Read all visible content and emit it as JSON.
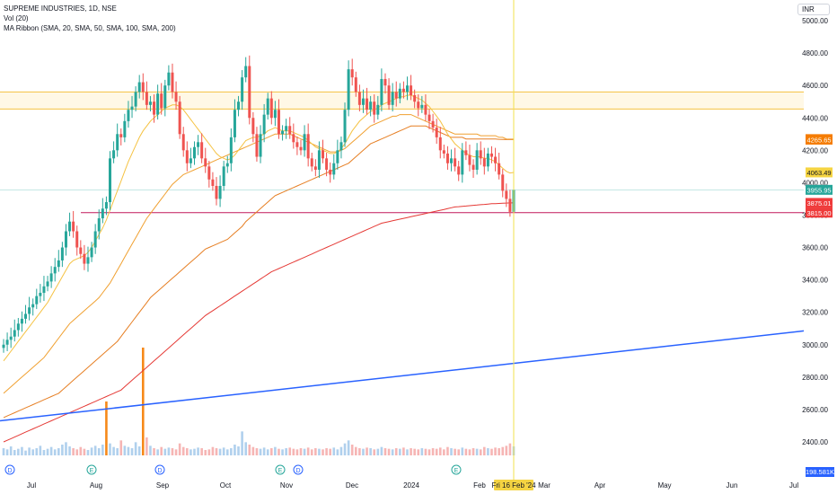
{
  "legend": {
    "symbol_line": "SUPREME INDUSTRIES, 1D, NSE",
    "volume_line": "Vol (20)",
    "ma_line": "MA Ribbon (SMA, 20, SMA, 50, SMA, 100, SMA, 200)"
  },
  "currency_badge": "INR",
  "crosshair_date_label": "Fri 16 Feb '24",
  "volume_tag": "198.581K",
  "colors": {
    "up": "#26a69a",
    "down": "#ef5350",
    "sma20": "#f5c242",
    "sma50": "#f0a030",
    "sma100": "#e67e22",
    "sma200": "#e53935",
    "trend": "#2962ff",
    "hline_red": "#c2185b",
    "hline_orange": "#f5c242",
    "crosshair": "#f2e14c",
    "tag_green": "#26a69a",
    "tag_red": "#ef3b3b",
    "tag_orange": "#f57c00",
    "tag_yellow": "#f5d442"
  },
  "chart_data": {
    "type": "candlestick",
    "title": "SUPREME INDUSTRIES, 1D, NSE",
    "ylim": [
      2300,
      5100
    ],
    "y_ticks": [
      2400,
      2600,
      2800,
      3000,
      3200,
      3400,
      3600,
      3800,
      4000,
      4200,
      4400,
      4600,
      4800,
      5000
    ],
    "x_ticks": [
      "Jul",
      "Aug",
      "Sep",
      "Oct",
      "Nov",
      "Dec",
      "2024",
      "Feb",
      "Mar",
      "Apr",
      "May",
      "Jun",
      "Jul"
    ],
    "price_tags": [
      {
        "value": 4268.93,
        "label": "4268.93",
        "color": "#f57c00"
      },
      {
        "value": 4265.65,
        "label": "4265.65",
        "color": "#f57c00"
      },
      {
        "value": 4063.49,
        "label": "4063.49",
        "color": "#f5d442"
      },
      {
        "value": 3955.95,
        "label": "3955.95",
        "color": "#26a69a"
      },
      {
        "value": 3875.01,
        "label": "3875.01",
        "color": "#ef3b3b"
      },
      {
        "value": 3815.0,
        "label": "3815.00",
        "color": "#ef3b3b"
      }
    ],
    "horizontal_lines": [
      {
        "value": 4560,
        "color": "#f5c242"
      },
      {
        "value": 4455,
        "color": "#f5c242"
      },
      {
        "value": 3815,
        "color": "#c2185b"
      }
    ],
    "trendline": {
      "from": [
        "Jun 14 2023",
        2530
      ],
      "to": [
        "Jul 1 2024",
        3085
      ]
    },
    "crosshair_date": "Fri 16 Feb '24",
    "close_series": [
      3000,
      3030,
      3050,
      3090,
      3130,
      3160,
      3190,
      3230,
      3250,
      3300,
      3320,
      3360,
      3390,
      3440,
      3480,
      3520,
      3600,
      3700,
      3760,
      3700,
      3600,
      3560,
      3500,
      3540,
      3600,
      3700,
      3780,
      3840,
      3880,
      4150,
      4200,
      4300,
      4280,
      4380,
      4450,
      4470,
      4560,
      4620,
      4560,
      4480,
      4500,
      4420,
      4550,
      4460,
      4600,
      4680,
      4560,
      4500,
      4300,
      4200,
      4120,
      4150,
      4220,
      4250,
      4150,
      4100,
      4020,
      3980,
      3900,
      3980,
      4100,
      4120,
      4280,
      4450,
      4500,
      4650,
      4720,
      4400,
      4300,
      4160,
      4300,
      4420,
      4520,
      4400,
      4450,
      4300,
      4320,
      4350,
      4300,
      4250,
      4220,
      4200,
      4300,
      4150,
      4100,
      4080,
      4200,
      4150,
      4080,
      4050,
      4120,
      4200,
      4250,
      4450,
      4700,
      4650,
      4560,
      4480,
      4520,
      4450,
      4500,
      4420,
      4480,
      4640,
      4600,
      4480,
      4560,
      4520,
      4580,
      4560,
      4600,
      4540,
      4500,
      4460,
      4480,
      4420,
      4380,
      4340,
      4280,
      4200,
      4180,
      4120,
      4150,
      4100,
      4050,
      4200,
      4170,
      4110,
      4080,
      4200,
      4150,
      4100,
      4180,
      4160,
      4120,
      4050,
      3950,
      3900,
      3820,
      3955
    ],
    "sma20_series": [
      2900,
      2930,
      2960,
      2990,
      3020,
      3050,
      3080,
      3110,
      3140,
      3170,
      3200,
      3230,
      3260,
      3300,
      3340,
      3380,
      3420,
      3460,
      3500,
      3520,
      3530,
      3540,
      3550,
      3570,
      3600,
      3640,
      3680,
      3720,
      3770,
      3830,
      3890,
      3950,
      4010,
      4070,
      4130,
      4180,
      4230,
      4280,
      4320,
      4350,
      4380,
      4400,
      4420,
      4440,
      4460,
      4470,
      4480,
      4480,
      4470,
      4450,
      4420,
      4390,
      4360,
      4330,
      4300,
      4270,
      4240,
      4210,
      4180,
      4160,
      4150,
      4140,
      4150,
      4170,
      4200,
      4230,
      4260,
      4270,
      4280,
      4280,
      4290,
      4300,
      4320,
      4330,
      4340,
      4330,
      4320,
      4320,
      4320,
      4310,
      4300,
      4290,
      4280,
      4260,
      4240,
      4220,
      4210,
      4200,
      4190,
      4180,
      4180,
      4190,
      4210,
      4240,
      4280,
      4320,
      4350,
      4380,
      4400,
      4420,
      4440,
      4450,
      4460,
      4480,
      4490,
      4500,
      4510,
      4520,
      4530,
      4530,
      4540,
      4540,
      4530,
      4520,
      4510,
      4490,
      4470,
      4440,
      4410,
      4380,
      4340,
      4300,
      4270,
      4240,
      4220,
      4200,
      4180,
      4170,
      4160,
      4160,
      4160,
      4150,
      4150,
      4140,
      4130,
      4110,
      4090,
      4070,
      4060,
      4063
    ],
    "sma50_series": [
      2700,
      2720,
      2740,
      2760,
      2780,
      2800,
      2820,
      2840,
      2860,
      2880,
      2900,
      2920,
      2950,
      2980,
      3010,
      3040,
      3070,
      3100,
      3130,
      3150,
      3170,
      3190,
      3210,
      3230,
      3250,
      3270,
      3290,
      3320,
      3350,
      3380,
      3420,
      3460,
      3500,
      3540,
      3580,
      3620,
      3660,
      3700,
      3740,
      3780,
      3810,
      3840,
      3870,
      3900,
      3930,
      3960,
      3990,
      4010,
      4030,
      4050,
      4060,
      4070,
      4080,
      4090,
      4100,
      4110,
      4120,
      4130,
      4140,
      4150,
      4160,
      4170,
      4180,
      4190,
      4200,
      4210,
      4220,
      4230,
      4240,
      4250,
      4260,
      4270,
      4280,
      4290,
      4300,
      4300,
      4300,
      4300,
      4300,
      4290,
      4280,
      4270,
      4260,
      4250,
      4240,
      4230,
      4220,
      4210,
      4200,
      4190,
      4190,
      4190,
      4200,
      4210,
      4230,
      4250,
      4270,
      4290,
      4310,
      4330,
      4350,
      4360,
      4370,
      4380,
      4390,
      4400,
      4410,
      4410,
      4420,
      4420,
      4420,
      4420,
      4410,
      4400,
      4390,
      4380,
      4370,
      4360,
      4350,
      4340,
      4330,
      4320,
      4310,
      4300,
      4300,
      4300,
      4300,
      4300,
      4300,
      4300,
      4290,
      4290,
      4290,
      4290,
      4290,
      4280,
      4280,
      4270,
      4269,
      4269
    ],
    "sma100_series": [
      2550,
      2560,
      2570,
      2580,
      2590,
      2600,
      2610,
      2620,
      2630,
      2640,
      2650,
      2660,
      2670,
      2680,
      2690,
      2700,
      2720,
      2740,
      2760,
      2780,
      2800,
      2820,
      2840,
      2860,
      2880,
      2900,
      2920,
      2940,
      2960,
      2980,
      3000,
      3020,
      3050,
      3080,
      3110,
      3140,
      3170,
      3200,
      3230,
      3260,
      3290,
      3310,
      3330,
      3350,
      3370,
      3390,
      3410,
      3430,
      3450,
      3470,
      3490,
      3510,
      3530,
      3550,
      3570,
      3590,
      3600,
      3610,
      3620,
      3630,
      3640,
      3650,
      3670,
      3690,
      3710,
      3730,
      3760,
      3780,
      3800,
      3820,
      3840,
      3860,
      3880,
      3900,
      3920,
      3930,
      3940,
      3950,
      3960,
      3970,
      3980,
      3990,
      4000,
      4010,
      4020,
      4030,
      4040,
      4050,
      4060,
      4070,
      4080,
      4090,
      4100,
      4110,
      4120,
      4140,
      4160,
      4180,
      4200,
      4220,
      4240,
      4250,
      4260,
      4270,
      4280,
      4290,
      4300,
      4310,
      4320,
      4330,
      4340,
      4350,
      4350,
      4350,
      4350,
      4350,
      4340,
      4330,
      4320,
      4310,
      4300,
      4290,
      4280,
      4280,
      4280,
      4280,
      4270,
      4270,
      4270,
      4270,
      4270,
      4270,
      4270,
      4270,
      4270,
      4268,
      4267,
      4266,
      4266,
      4266
    ],
    "sma200_series": [
      2400,
      2410,
      2420,
      2430,
      2440,
      2450,
      2460,
      2470,
      2480,
      2490,
      2500,
      2510,
      2520,
      2530,
      2540,
      2550,
      2560,
      2570,
      2580,
      2590,
      2600,
      2610,
      2620,
      2630,
      2640,
      2650,
      2660,
      2670,
      2680,
      2690,
      2700,
      2710,
      2720,
      2740,
      2760,
      2780,
      2800,
      2820,
      2840,
      2860,
      2880,
      2900,
      2920,
      2940,
      2960,
      2980,
      3000,
      3020,
      3040,
      3060,
      3080,
      3100,
      3120,
      3140,
      3160,
      3180,
      3195,
      3210,
      3225,
      3240,
      3255,
      3270,
      3285,
      3300,
      3315,
      3330,
      3345,
      3360,
      3375,
      3390,
      3405,
      3420,
      3435,
      3450,
      3460,
      3470,
      3480,
      3490,
      3500,
      3510,
      3520,
      3530,
      3540,
      3550,
      3560,
      3570,
      3580,
      3590,
      3600,
      3610,
      3620,
      3630,
      3640,
      3650,
      3660,
      3670,
      3680,
      3690,
      3700,
      3710,
      3720,
      3730,
      3740,
      3750,
      3755,
      3760,
      3765,
      3770,
      3775,
      3780,
      3785,
      3790,
      3795,
      3800,
      3805,
      3810,
      3815,
      3820,
      3825,
      3830,
      3835,
      3840,
      3845,
      3850,
      3852,
      3854,
      3856,
      3858,
      3860,
      3862,
      3864,
      3866,
      3868,
      3870,
      3871,
      3872,
      3873,
      3874,
      3875,
      3875
    ],
    "volume_series": [
      12,
      10,
      15,
      9,
      11,
      14,
      8,
      13,
      10,
      12,
      16,
      9,
      11,
      14,
      10,
      12,
      18,
      22,
      15,
      12,
      10,
      14,
      11,
      9,
      13,
      16,
      12,
      18,
      90,
      20,
      14,
      12,
      25,
      16,
      14,
      12,
      22,
      15,
      180,
      30,
      16,
      12,
      10,
      14,
      11,
      13,
      12,
      10,
      20,
      14,
      12,
      10,
      11,
      13,
      12,
      9,
      10,
      14,
      12,
      11,
      13,
      10,
      12,
      18,
      15,
      40,
      22,
      18,
      14,
      12,
      11,
      13,
      10,
      12,
      14,
      11,
      10,
      12,
      13,
      11,
      10,
      12,
      11,
      13,
      10,
      12,
      11,
      10,
      12,
      11,
      13,
      10,
      14,
      20,
      25,
      18,
      14,
      12,
      11,
      13,
      12,
      10,
      11,
      14,
      12,
      11,
      10,
      12,
      11,
      13,
      10,
      12,
      11,
      10,
      12,
      11,
      10,
      12,
      11,
      13,
      10,
      14,
      12,
      11,
      10,
      13,
      11,
      10,
      12,
      11,
      10,
      14,
      12,
      11,
      13,
      12,
      14,
      16,
      20,
      15
    ]
  }
}
